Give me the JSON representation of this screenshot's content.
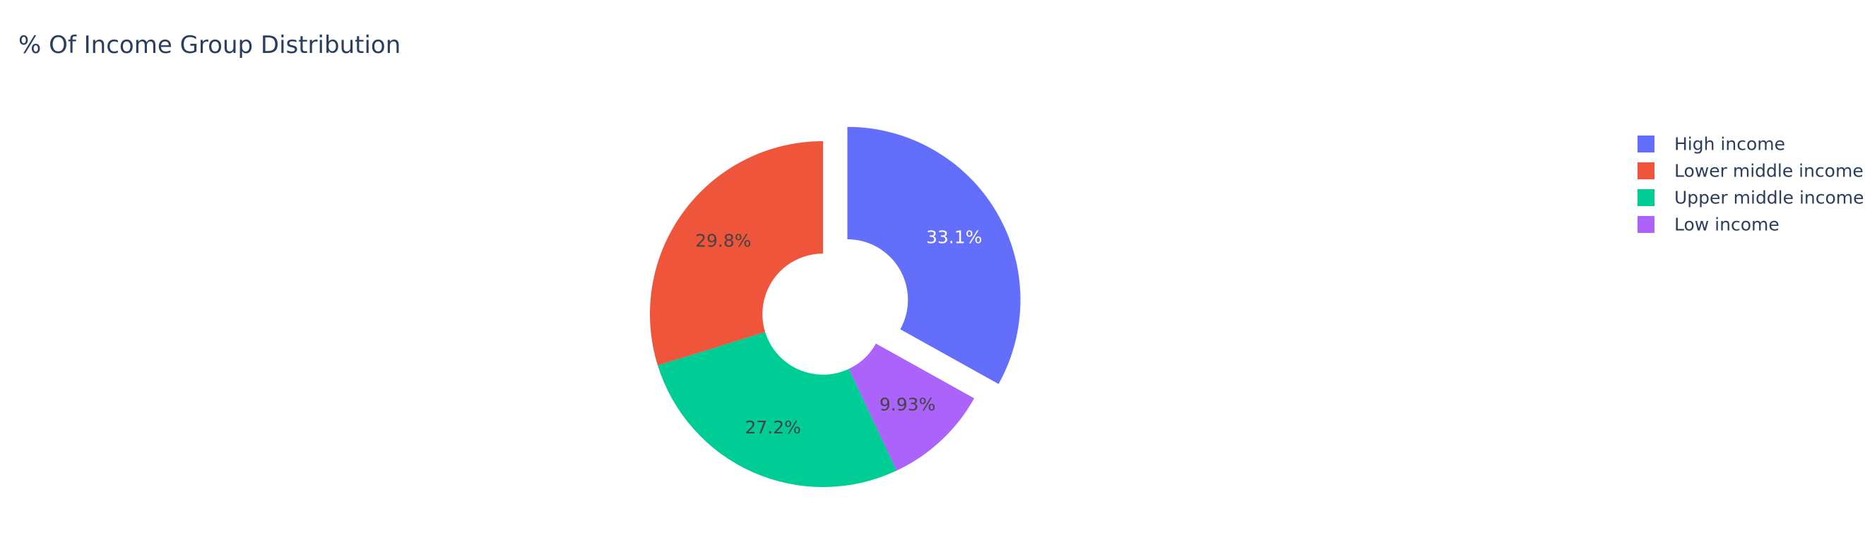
{
  "chart_data": {
    "type": "pie",
    "title": "% Of Income Group Distribution",
    "hole": 0.25,
    "direction": "clockwise",
    "labels": [
      "High income",
      "Lower middle income",
      "Upper middle income",
      "Low income"
    ],
    "values": [
      33.1,
      29.8,
      27.2,
      9.93
    ],
    "label_text": [
      "33.1%",
      "29.8%",
      "27.2%",
      "9.93%"
    ],
    "colors": [
      "#636efa",
      "#ef553b",
      "#00cc96",
      "#ab63fa"
    ],
    "pulled": [
      "High income"
    ],
    "slice_order": [
      "High income",
      "Low income",
      "Upper middle income",
      "Lower middle income"
    ],
    "legend_position": "top-right",
    "text_colors": [
      "#ffffff",
      "#444444",
      "#444444",
      "#444444"
    ]
  }
}
